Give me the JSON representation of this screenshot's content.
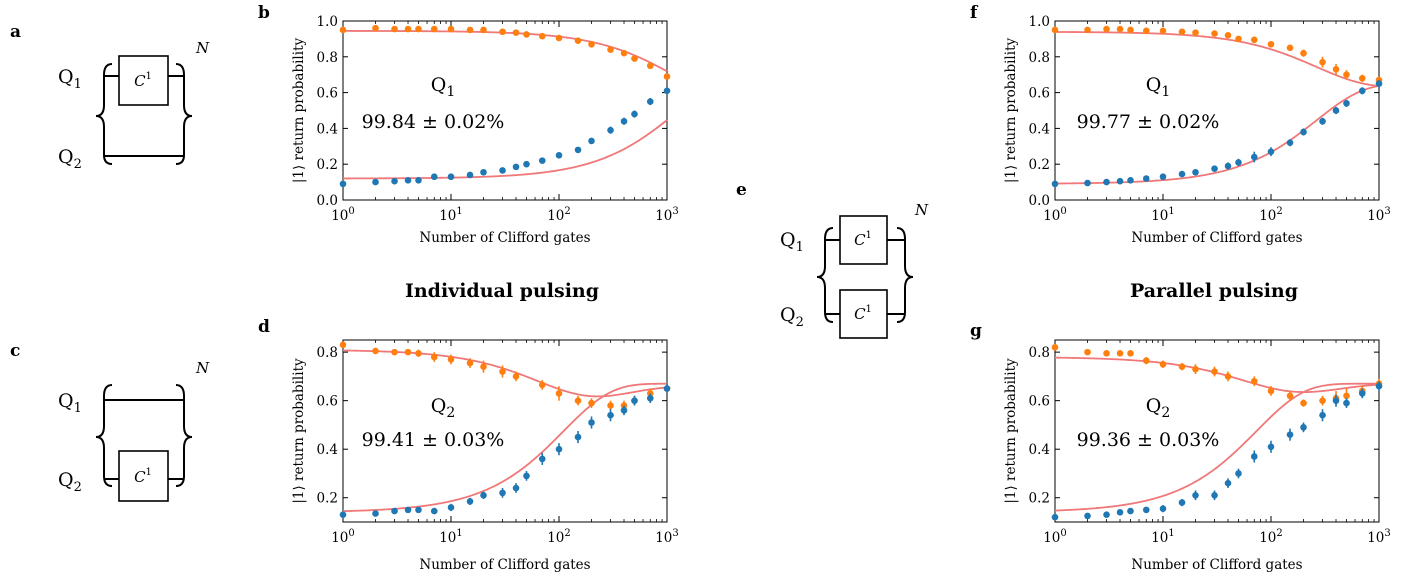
{
  "section_titles": {
    "individual": "Individual pulsing",
    "parallel": "Parallel pulsing"
  },
  "circuit_labels": {
    "q1": "Q",
    "q1_sub": "1",
    "q2": "Q",
    "q2_sub": "2",
    "gate": "C",
    "gate_sup": "1",
    "repeat": "N"
  },
  "panel_letters": {
    "a": "a",
    "b": "b",
    "c": "c",
    "d": "d",
    "e": "e",
    "f": "f",
    "g": "g"
  },
  "colors": {
    "series_1": "#ff7f0e",
    "series_0": "#1f77b4",
    "fit": "#f07878"
  },
  "chart_data": [
    {
      "panel": "b",
      "type": "scatter",
      "xscale": "log",
      "xlim": [
        1,
        1000
      ],
      "ylim": [
        0.0,
        1.0
      ],
      "xticks": [
        1,
        10,
        100,
        1000
      ],
      "xtick_labels": [
        "10^0",
        "10^1",
        "10^2",
        "10^3"
      ],
      "yticks": [
        0.0,
        0.2,
        0.4,
        0.6,
        0.8,
        1.0
      ],
      "ytick_labels": [
        "0.0",
        "0.2",
        "0.4",
        "0.6",
        "0.8",
        "1.0"
      ],
      "xlabel": "Number of Clifford gates",
      "ylabel": "|1⟩ return probability",
      "qubit_label": "Q",
      "qubit_sub": "1",
      "fidelity": "99.84 ± 0.02%",
      "fit_params": {
        "p": 0.9968,
        "A_hi": 0.42,
        "A_lo": -0.41,
        "B": 0.53
      },
      "series": [
        {
          "color": "#ff7f0e",
          "x": [
            1,
            2,
            3,
            4,
            5,
            7,
            10,
            15,
            20,
            30,
            40,
            50,
            70,
            100,
            150,
            200,
            300,
            400,
            500,
            700,
            1000
          ],
          "y": [
            0.95,
            0.96,
            0.955,
            0.955,
            0.955,
            0.955,
            0.955,
            0.95,
            0.95,
            0.94,
            0.935,
            0.925,
            0.915,
            0.905,
            0.89,
            0.87,
            0.84,
            0.82,
            0.79,
            0.75,
            0.69
          ],
          "err": [
            0.01,
            0.01,
            0.01,
            0.01,
            0.01,
            0.01,
            0.01,
            0.01,
            0.01,
            0.01,
            0.01,
            0.01,
            0.01,
            0.01,
            0.01,
            0.01,
            0.01,
            0.015,
            0.015,
            0.015,
            0.015
          ]
        },
        {
          "color": "#1f77b4",
          "x": [
            1,
            2,
            3,
            4,
            5,
            7,
            10,
            15,
            20,
            30,
            40,
            50,
            70,
            100,
            150,
            200,
            300,
            400,
            500,
            700,
            1000
          ],
          "y": [
            0.09,
            0.1,
            0.105,
            0.11,
            0.11,
            0.13,
            0.13,
            0.14,
            0.155,
            0.165,
            0.185,
            0.2,
            0.22,
            0.25,
            0.28,
            0.33,
            0.39,
            0.44,
            0.48,
            0.55,
            0.61
          ],
          "err": [
            0.01,
            0.01,
            0.01,
            0.01,
            0.01,
            0.01,
            0.01,
            0.01,
            0.01,
            0.015,
            0.015,
            0.015,
            0.015,
            0.015,
            0.015,
            0.015,
            0.02,
            0.02,
            0.02,
            0.02,
            0.02
          ]
        }
      ]
    },
    {
      "panel": "d",
      "type": "scatter",
      "xscale": "log",
      "xlim": [
        1,
        1000
      ],
      "ylim": [
        0.1,
        0.85
      ],
      "xticks": [
        1,
        10,
        100,
        1000
      ],
      "xtick_labels": [
        "10^0",
        "10^1",
        "10^2",
        "10^3"
      ],
      "yticks": [
        0.2,
        0.4,
        0.6,
        0.8
      ],
      "ytick_labels": [
        "0.2",
        "0.4",
        "0.6",
        "0.8"
      ],
      "xlabel": "Number of Clifford gates",
      "ylabel": "|1⟩ return probability",
      "qubit_label": "Q",
      "qubit_sub": "2",
      "fidelity": "99.41 ± 0.03%",
      "fit_params": {
        "p": 0.99,
        "A_hi": 0.42,
        "A_lo": -0.53,
        "B": 0.66
      },
      "fit_series": [
        {
          "A": 0.42,
          "B": 0.39,
          "C": 0.52,
          "D": 0.003
        },
        {
          "A": -0.53,
          "B": 0.66,
          "C": 0,
          "D": 0
        }
      ],
      "series": [
        {
          "color": "#ff7f0e",
          "x": [
            1,
            2,
            3,
            4,
            5,
            7,
            10,
            15,
            20,
            30,
            40,
            70,
            100,
            150,
            200,
            300,
            400,
            500,
            700,
            1000
          ],
          "y": [
            0.83,
            0.805,
            0.8,
            0.8,
            0.795,
            0.78,
            0.77,
            0.755,
            0.74,
            0.72,
            0.7,
            0.665,
            0.63,
            0.6,
            0.59,
            0.58,
            0.58,
            0.6,
            0.63,
            0.65
          ],
          "err": [
            0.01,
            0.01,
            0.01,
            0.01,
            0.015,
            0.02,
            0.02,
            0.02,
            0.025,
            0.025,
            0.02,
            0.02,
            0.03,
            0.02,
            0.02,
            0.02,
            0.02,
            0.02,
            0.02,
            0.02
          ]
        },
        {
          "color": "#1f77b4",
          "x": [
            1,
            2,
            3,
            4,
            5,
            7,
            10,
            15,
            20,
            30,
            40,
            50,
            70,
            100,
            150,
            200,
            300,
            400,
            500,
            700,
            1000
          ],
          "y": [
            0.13,
            0.135,
            0.145,
            0.15,
            0.15,
            0.145,
            0.16,
            0.185,
            0.21,
            0.22,
            0.24,
            0.29,
            0.36,
            0.4,
            0.45,
            0.51,
            0.54,
            0.56,
            0.6,
            0.61,
            0.65
          ],
          "err": [
            0.01,
            0.01,
            0.01,
            0.01,
            0.01,
            0.01,
            0.015,
            0.015,
            0.015,
            0.02,
            0.02,
            0.02,
            0.025,
            0.025,
            0.025,
            0.025,
            0.025,
            0.02,
            0.02,
            0.02,
            0.02
          ]
        }
      ]
    },
    {
      "panel": "f",
      "type": "scatter",
      "xscale": "log",
      "xlim": [
        1,
        1000
      ],
      "ylim": [
        0.0,
        1.0
      ],
      "xticks": [
        1,
        10,
        100,
        1000
      ],
      "xtick_labels": [
        "10^0",
        "10^1",
        "10^2",
        "10^3"
      ],
      "yticks": [
        0.0,
        0.2,
        0.4,
        0.6,
        0.8,
        1.0
      ],
      "ytick_labels": [
        "0.0",
        "0.2",
        "0.4",
        "0.6",
        "0.8",
        "1.0"
      ],
      "xlabel": "Number of Clifford gates",
      "ylabel": "|1⟩ return probability",
      "qubit_label": "Q",
      "qubit_sub": "1",
      "fidelity": "99.77 ± 0.02%",
      "series": [
        {
          "color": "#ff7f0e",
          "x": [
            1,
            2,
            3,
            4,
            5,
            7,
            10,
            15,
            20,
            30,
            40,
            50,
            70,
            100,
            150,
            200,
            300,
            400,
            500,
            700,
            1000
          ],
          "y": [
            0.95,
            0.95,
            0.955,
            0.955,
            0.95,
            0.945,
            0.945,
            0.94,
            0.935,
            0.93,
            0.92,
            0.9,
            0.895,
            0.87,
            0.85,
            0.82,
            0.77,
            0.73,
            0.7,
            0.68,
            0.67
          ],
          "err": [
            0.01,
            0.01,
            0.01,
            0.01,
            0.01,
            0.01,
            0.01,
            0.01,
            0.01,
            0.01,
            0.01,
            0.015,
            0.015,
            0.015,
            0.015,
            0.02,
            0.03,
            0.03,
            0.025,
            0.02,
            0.02
          ]
        },
        {
          "color": "#1f77b4",
          "x": [
            1,
            2,
            3,
            4,
            5,
            7,
            10,
            15,
            20,
            30,
            40,
            50,
            70,
            100,
            150,
            200,
            300,
            400,
            500,
            700,
            1000
          ],
          "y": [
            0.09,
            0.095,
            0.1,
            0.105,
            0.11,
            0.12,
            0.13,
            0.145,
            0.155,
            0.175,
            0.19,
            0.21,
            0.24,
            0.27,
            0.32,
            0.38,
            0.44,
            0.5,
            0.54,
            0.61,
            0.65
          ],
          "err": [
            0.01,
            0.01,
            0.01,
            0.01,
            0.01,
            0.015,
            0.015,
            0.015,
            0.015,
            0.015,
            0.02,
            0.02,
            0.03,
            0.025,
            0.02,
            0.02,
            0.02,
            0.02,
            0.02,
            0.02,
            0.02
          ]
        }
      ]
    },
    {
      "panel": "g",
      "type": "scatter",
      "xscale": "log",
      "xlim": [
        1,
        1000
      ],
      "ylim": [
        0.1,
        0.85
      ],
      "xticks": [
        1,
        10,
        100,
        1000
      ],
      "xtick_labels": [
        "10^0",
        "10^1",
        "10^2",
        "10^3"
      ],
      "yticks": [
        0.2,
        0.4,
        0.6,
        0.8
      ],
      "ytick_labels": [
        "0.2",
        "0.4",
        "0.6",
        "0.8"
      ],
      "xlabel": "Number of Clifford gates",
      "ylabel": "|1⟩ return probability",
      "qubit_label": "Q",
      "qubit_sub": "2",
      "fidelity": "99.36 ± 0.03%",
      "series": [
        {
          "color": "#ff7f0e",
          "x": [
            1,
            2,
            3,
            4,
            5,
            7,
            10,
            15,
            20,
            30,
            40,
            70,
            100,
            150,
            200,
            300,
            400,
            500,
            700,
            1000
          ],
          "y": [
            0.82,
            0.8,
            0.795,
            0.795,
            0.795,
            0.765,
            0.75,
            0.74,
            0.73,
            0.72,
            0.7,
            0.68,
            0.64,
            0.62,
            0.59,
            0.6,
            0.61,
            0.62,
            0.64,
            0.67
          ],
          "err": [
            0.01,
            0.01,
            0.01,
            0.01,
            0.01,
            0.015,
            0.015,
            0.015,
            0.02,
            0.02,
            0.02,
            0.02,
            0.02,
            0.02,
            0.015,
            0.02,
            0.03,
            0.03,
            0.02,
            0.02
          ]
        },
        {
          "color": "#1f77b4",
          "x": [
            1,
            2,
            3,
            4,
            5,
            7,
            10,
            15,
            20,
            30,
            40,
            50,
            70,
            100,
            150,
            200,
            300,
            400,
            500,
            700,
            1000
          ],
          "y": [
            0.12,
            0.125,
            0.13,
            0.14,
            0.145,
            0.15,
            0.155,
            0.18,
            0.21,
            0.21,
            0.26,
            0.3,
            0.37,
            0.41,
            0.46,
            0.49,
            0.54,
            0.6,
            0.59,
            0.63,
            0.66
          ],
          "err": [
            0.01,
            0.01,
            0.01,
            0.01,
            0.01,
            0.01,
            0.015,
            0.015,
            0.02,
            0.02,
            0.02,
            0.02,
            0.025,
            0.025,
            0.025,
            0.02,
            0.025,
            0.025,
            0.02,
            0.02,
            0.02
          ]
        }
      ]
    }
  ]
}
